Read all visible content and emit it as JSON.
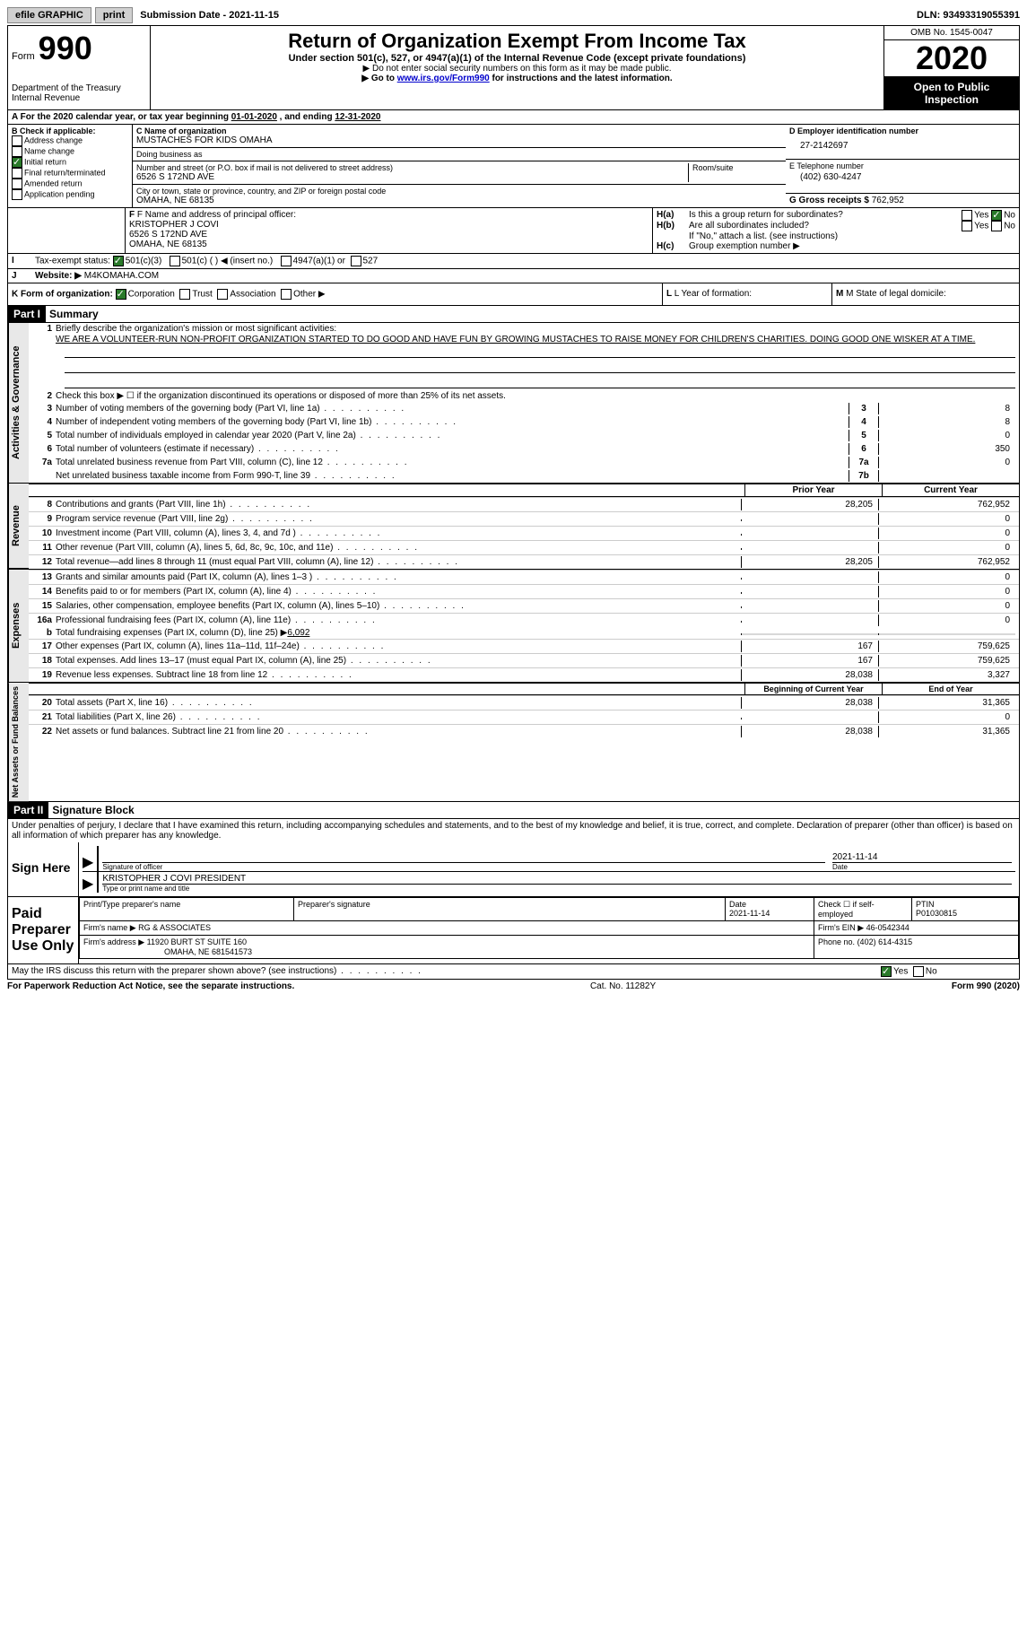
{
  "top": {
    "efile": "efile GRAPHIC",
    "print": "print",
    "sub_label": "Submission Date - ",
    "sub_date": "2021-11-15",
    "dln_label": "DLN: ",
    "dln": "93493319055391"
  },
  "header": {
    "form_word": "Form",
    "form_num": "990",
    "dept": "Department of the Treasury\nInternal Revenue ",
    "title": "Return of Organization Exempt From Income Tax",
    "sub": "Under section 501(c), 527, or 4947(a)(1) of the Internal Revenue Code (except private foundations)",
    "note1": "▶ Do not enter social security numbers on this form as it may be made public.",
    "note2a": "▶ Go to ",
    "note2_link": "www.irs.gov/Form990",
    "note2b": " for instructions and the latest information.",
    "omb": "OMB No. 1545-0047",
    "year": "2020",
    "open": "Open to Public Inspection"
  },
  "period": {
    "a": "A For the 2020 calendar year, or tax year beginning ",
    "begin": "01-01-2020",
    "mid": " , and ending ",
    "end": "12-31-2020"
  },
  "boxB": {
    "label": "B Check if applicable:",
    "addr": "Address change",
    "name": "Name change",
    "initial": "Initial return",
    "initial_checked": true,
    "final": "Final return/terminated",
    "amended": "Amended return",
    "pending": "Application pending"
  },
  "boxC": {
    "name_label": "C Name of organization",
    "name": "MUSTACHES FOR KIDS OMAHA",
    "dba_label": "Doing business as",
    "street_label": "Number and street (or P.O. box if mail is not delivered to street address)",
    "street": "6526 S 172ND AVE",
    "room_label": "Room/suite",
    "city_label": "City or town, state or province, country, and ZIP or foreign postal code",
    "city": "OMAHA, NE  68135"
  },
  "boxD": {
    "label": "D Employer identification number",
    "value": "27-2142697"
  },
  "boxE": {
    "label": "E Telephone number",
    "value": "(402) 630-4247"
  },
  "boxG": {
    "label": "G Gross receipts $ ",
    "value": "762,952"
  },
  "boxF": {
    "label": "F Name and address of principal officer:",
    "name": "KRISTOPHER J COVI",
    "street": "6526 S 172ND AVE",
    "city": "OMAHA, NE  68135"
  },
  "boxH": {
    "a_label": "H(a)",
    "a_text": "Is this a group return for subordinates?",
    "a_no_checked": true,
    "b_label": "H(b)",
    "b_text": "Are all subordinates included?",
    "b_note": "If \"No,\" attach a list. (see instructions)",
    "c_label": "H(c)",
    "c_text": "Group exemption number ▶"
  },
  "boxI": {
    "label": "I",
    "text": "Tax-exempt status:",
    "c3": "501(c)(3)",
    "c3_checked": true,
    "c": "501(c) (  ) ◀ (insert no.)",
    "a1": "4947(a)(1) or",
    "s527": "527"
  },
  "boxJ": {
    "label": "J",
    "text": "Website: ▶",
    "value": "M4KOMAHA.COM"
  },
  "boxK": {
    "label": "K Form of organization:",
    "corp": "Corporation",
    "corp_checked": true,
    "trust": "Trust",
    "assoc": "Association",
    "other": "Other ▶"
  },
  "boxL": {
    "label": "L Year of formation:"
  },
  "boxM": {
    "label": "M State of legal domicile:"
  },
  "part1": {
    "hdr": "Part I",
    "title": "Summary",
    "l1_label": "1",
    "l1_text": "Briefly describe the organization's mission or most significant activities:",
    "l1_val": "WE ARE A VOLUNTEER-RUN NON-PROFIT ORGANIZATION STARTED TO DO GOOD AND HAVE FUN BY GROWING MUSTACHES TO RAISE MONEY FOR CHILDREN'S CHARITIES. DOING GOOD ONE WISKER AT A TIME.",
    "l2_label": "2",
    "l2_text": "Check this box ▶ ☐  if the organization discontinued its operations or disposed of more than 25% of its net assets.",
    "gov_tab": "Activities & Governance",
    "rows_single": [
      {
        "n": "3",
        "t": "Number of voting members of the governing body (Part VI, line 1a)",
        "box": "3",
        "v": "8"
      },
      {
        "n": "4",
        "t": "Number of independent voting members of the governing body (Part VI, line 1b)",
        "box": "4",
        "v": "8"
      },
      {
        "n": "5",
        "t": "Total number of individuals employed in calendar year 2020 (Part V, line 2a)",
        "box": "5",
        "v": "0"
      },
      {
        "n": "6",
        "t": "Total number of volunteers (estimate if necessary)",
        "box": "6",
        "v": "350"
      },
      {
        "n": "7a",
        "t": "Total unrelated business revenue from Part VIII, column (C), line 12",
        "box": "7a",
        "v": "0"
      },
      {
        "n": "",
        "t": "Net unrelated business taxable income from Form 990-T, line 39",
        "box": "7b",
        "v": ""
      }
    ],
    "hdr_prior": "Prior Year",
    "hdr_current": "Current Year",
    "rev_tab": "Revenue",
    "rev_rows": [
      {
        "n": "8",
        "t": "Contributions and grants (Part VIII, line 1h)",
        "p": "28,205",
        "c": "762,952"
      },
      {
        "n": "9",
        "t": "Program service revenue (Part VIII, line 2g)",
        "p": "",
        "c": "0"
      },
      {
        "n": "10",
        "t": "Investment income (Part VIII, column (A), lines 3, 4, and 7d )",
        "p": "",
        "c": "0"
      },
      {
        "n": "11",
        "t": "Other revenue (Part VIII, column (A), lines 5, 6d, 8c, 9c, 10c, and 11e)",
        "p": "",
        "c": "0"
      },
      {
        "n": "12",
        "t": "Total revenue—add lines 8 through 11 (must equal Part VIII, column (A), line 12)",
        "p": "28,205",
        "c": "762,952"
      }
    ],
    "exp_tab": "Expenses",
    "exp_rows": [
      {
        "n": "13",
        "t": "Grants and similar amounts paid (Part IX, column (A), lines 1–3 )",
        "p": "",
        "c": "0"
      },
      {
        "n": "14",
        "t": "Benefits paid to or for members (Part IX, column (A), line 4)",
        "p": "",
        "c": "0"
      },
      {
        "n": "15",
        "t": "Salaries, other compensation, employee benefits (Part IX, column (A), lines 5–10)",
        "p": "",
        "c": "0"
      },
      {
        "n": "16a",
        "t": "Professional fundraising fees (Part IX, column (A), line 11e)",
        "p": "",
        "c": "0"
      }
    ],
    "exp_b": {
      "n": "b",
      "t": "Total fundraising expenses (Part IX, column (D), line 25) ▶",
      "v": "6,092"
    },
    "exp_rows2": [
      {
        "n": "17",
        "t": "Other expenses (Part IX, column (A), lines 11a–11d, 11f–24e)",
        "p": "167",
        "c": "759,625"
      },
      {
        "n": "18",
        "t": "Total expenses. Add lines 13–17 (must equal Part IX, column (A), line 25)",
        "p": "167",
        "c": "759,625"
      },
      {
        "n": "19",
        "t": "Revenue less expenses. Subtract line 18 from line 12",
        "p": "28,038",
        "c": "3,327"
      }
    ],
    "na_tab": "Net Assets or Fund Balances",
    "hdr_begin": "Beginning of Current Year",
    "hdr_end": "End of Year",
    "na_rows": [
      {
        "n": "20",
        "t": "Total assets (Part X, line 16)",
        "p": "28,038",
        "c": "31,365"
      },
      {
        "n": "21",
        "t": "Total liabilities (Part X, line 26)",
        "p": "",
        "c": "0"
      },
      {
        "n": "22",
        "t": "Net assets or fund balances. Subtract line 21 from line 20",
        "p": "28,038",
        "c": "31,365"
      }
    ]
  },
  "part2": {
    "hdr": "Part II",
    "title": "Signature Block",
    "decl": "Under penalties of perjury, I declare that I have examined this return, including accompanying schedules and statements, and to the best of my knowledge and belief, it is true, correct, and complete. Declaration of preparer (other than officer) is based on all information of which preparer has any knowledge."
  },
  "sign": {
    "label": "Sign Here",
    "sig_label": "Signature of officer",
    "date_label": "Date",
    "date": "2021-11-14",
    "name": "KRISTOPHER J COVI PRESIDENT",
    "name_label": "Type or print name and title"
  },
  "paid": {
    "label": "Paid Preparer Use Only",
    "h_name": "Print/Type preparer's name",
    "h_sig": "Preparer's signature",
    "h_date": "Date",
    "date": "2021-11-14",
    "h_check": "Check ☐ if self-employed",
    "h_ptin": "PTIN",
    "ptin": "P01030815",
    "firm_label": "Firm's name   ▶",
    "firm": "RG & ASSOCIATES",
    "ein_label": "Firm's EIN ▶",
    "ein": "46-0542344",
    "addr_label": "Firm's address ▶",
    "addr1": "11920 BURT ST SUITE 160",
    "addr2": "OMAHA, NE  681541573",
    "phone_label": "Phone no.",
    "phone": "(402) 614-4315"
  },
  "discuss": {
    "text": "May the IRS discuss this return with the preparer shown above? (see instructions)",
    "yes_checked": true
  },
  "footer": {
    "left": "For Paperwork Reduction Act Notice, see the separate instructions.",
    "mid": "Cat. No. 11282Y",
    "right": "Form 990 (2020)"
  }
}
